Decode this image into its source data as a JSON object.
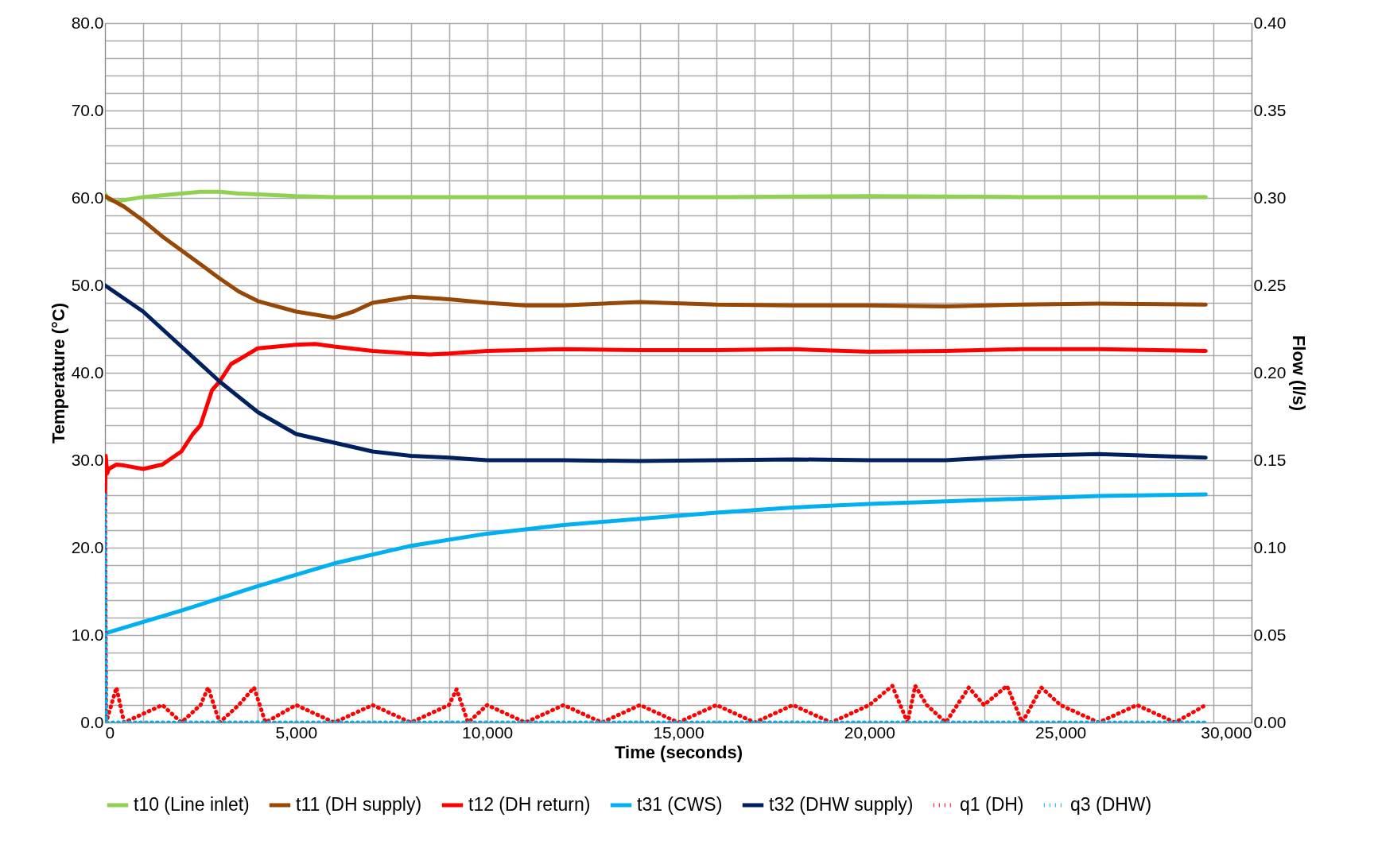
{
  "chart_data": {
    "type": "line",
    "xlabel": "Time (seconds)",
    "ylabel": "Temperature (°C)",
    "y2label": "Flow (l/s)",
    "xlim": [
      0,
      30000
    ],
    "ylim": [
      0,
      80
    ],
    "y2lim": [
      0,
      0.4
    ],
    "xticks": [
      0,
      {
        "value": 1000,
        "label": null
      },
      {
        "value": 2000,
        "label": null
      },
      {
        "value": 3000,
        "label": null
      },
      {
        "value": 4000,
        "label": null
      },
      {
        "value": 5000,
        "label": "5,000"
      },
      {
        "value": 6000,
        "label": null
      },
      {
        "value": 7000,
        "label": null
      },
      {
        "value": 8000,
        "label": null
      },
      {
        "value": 9000,
        "label": null
      },
      {
        "value": 10000,
        "label": "10,000"
      },
      {
        "value": 11000,
        "label": null
      },
      {
        "value": 12000,
        "label": null
      },
      {
        "value": 13000,
        "label": null
      },
      {
        "value": 14000,
        "label": null
      },
      {
        "value": 15000,
        "label": "15,000"
      },
      {
        "value": 16000,
        "label": null
      },
      {
        "value": 17000,
        "label": null
      },
      {
        "value": 18000,
        "label": null
      },
      {
        "value": 19000,
        "label": null
      },
      {
        "value": 20000,
        "label": "20,000"
      },
      {
        "value": 21000,
        "label": null
      },
      {
        "value": 22000,
        "label": null
      },
      {
        "value": 23000,
        "label": null
      },
      {
        "value": 24000,
        "label": null
      },
      {
        "value": 25000,
        "label": "25,000"
      },
      {
        "value": 26000,
        "label": null
      },
      {
        "value": 27000,
        "label": null
      },
      {
        "value": 28000,
        "label": null
      },
      {
        "value": 29000,
        "label": null
      },
      {
        "value": 30000,
        "label": "30,000"
      }
    ],
    "yticks": [
      {
        "value": 0,
        "label": "0.0"
      },
      {
        "value": 2,
        "label": null
      },
      {
        "value": 4,
        "label": null
      },
      {
        "value": 6,
        "label": null
      },
      {
        "value": 8,
        "label": null
      },
      {
        "value": 10,
        "label": "10.0"
      },
      {
        "value": 12,
        "label": null
      },
      {
        "value": 14,
        "label": null
      },
      {
        "value": 16,
        "label": null
      },
      {
        "value": 18,
        "label": null
      },
      {
        "value": 20,
        "label": "20.0"
      },
      {
        "value": 22,
        "label": null
      },
      {
        "value": 24,
        "label": null
      },
      {
        "value": 26,
        "label": null
      },
      {
        "value": 28,
        "label": null
      },
      {
        "value": 30,
        "label": "30.0"
      },
      {
        "value": 32,
        "label": null
      },
      {
        "value": 34,
        "label": null
      },
      {
        "value": 36,
        "label": null
      },
      {
        "value": 38,
        "label": null
      },
      {
        "value": 40,
        "label": "40.0"
      },
      {
        "value": 42,
        "label": null
      },
      {
        "value": 44,
        "label": null
      },
      {
        "value": 46,
        "label": null
      },
      {
        "value": 48,
        "label": null
      },
      {
        "value": 50,
        "label": "50.0"
      },
      {
        "value": 52,
        "label": null
      },
      {
        "value": 54,
        "label": null
      },
      {
        "value": 56,
        "label": null
      },
      {
        "value": 58,
        "label": null
      },
      {
        "value": 60,
        "label": "60.0"
      },
      {
        "value": 62,
        "label": null
      },
      {
        "value": 64,
        "label": null
      },
      {
        "value": 66,
        "label": null
      },
      {
        "value": 68,
        "label": null
      },
      {
        "value": 70,
        "label": "70.0"
      },
      {
        "value": 72,
        "label": null
      },
      {
        "value": 74,
        "label": null
      },
      {
        "value": 76,
        "label": null
      },
      {
        "value": 78,
        "label": null
      },
      {
        "value": 80,
        "label": "80.0"
      }
    ],
    "y2ticks": [
      {
        "value": 0,
        "label": "0.00"
      },
      0.05,
      {
        "value": 0.1,
        "label": "0.10"
      },
      0.15,
      {
        "value": 0.2,
        "label": "0.20"
      },
      0.25,
      {
        "value": 0.3,
        "label": "0.30"
      },
      0.35,
      {
        "value": 0.4,
        "label": "0.40"
      }
    ],
    "grid": true,
    "legend": "bottom",
    "marker": "none",
    "series": [
      {
        "name": "t10 (Line inlet)",
        "color": "#92d050",
        "line_style": "solid",
        "x": [
          0,
          100,
          300,
          1000,
          1500,
          2000,
          2500,
          3000,
          3500,
          4000,
          5000,
          6000,
          8000,
          12000,
          16000,
          20000,
          24000,
          28800
        ],
        "values": [
          60.5,
          59.8,
          59.6,
          60.1,
          60.3,
          60.5,
          60.7,
          60.7,
          60.5,
          60.4,
          60.2,
          60.1,
          60.1,
          60.1,
          60.1,
          60.2,
          60.1,
          60.1
        ]
      },
      {
        "name": "t11 (DH supply)",
        "color": "#974706",
        "line_style": "solid",
        "x": [
          0,
          500,
          1000,
          1500,
          2000,
          2500,
          3000,
          3500,
          4000,
          5000,
          6000,
          6500,
          7000,
          8000,
          9000,
          10000,
          11000,
          12000,
          14000,
          16000,
          18000,
          20000,
          22000,
          24000,
          26000,
          28800
        ],
        "values": [
          60.2,
          59,
          57.4,
          55.6,
          54,
          52.4,
          50.8,
          49.3,
          48.2,
          47,
          46.3,
          47,
          48,
          48.7,
          48.4,
          48,
          47.7,
          47.7,
          48.1,
          47.8,
          47.7,
          47.7,
          47.6,
          47.8,
          47.9,
          47.8
        ]
      },
      {
        "name": "t12 (DH return)",
        "color": "#ff0000",
        "line_style": "solid",
        "x": [
          0,
          20,
          60,
          100,
          300,
          500,
          1000,
          1500,
          2000,
          2300,
          2500,
          2800,
          3000,
          3300,
          3500,
          4000,
          5000,
          5500,
          6000,
          7000,
          8000,
          8500,
          9000,
          10000,
          12000,
          14000,
          16000,
          18000,
          20000,
          22000,
          24000,
          26000,
          28800
        ],
        "values": [
          25,
          30.5,
          28.5,
          29,
          29.5,
          29.4,
          29,
          29.5,
          31,
          33,
          34,
          38,
          39,
          41,
          41.5,
          42.8,
          43.2,
          43.3,
          43,
          42.5,
          42.2,
          42.1,
          42.2,
          42.5,
          42.7,
          42.6,
          42.6,
          42.7,
          42.4,
          42.5,
          42.7,
          42.7,
          42.5
        ]
      },
      {
        "name": "t31 (CWS)",
        "color": "#00b0f0",
        "line_style": "solid",
        "x": [
          0,
          2000,
          4000,
          6000,
          8000,
          10000,
          12000,
          14000,
          16000,
          18000,
          20000,
          22000,
          24000,
          26000,
          28800
        ],
        "values": [
          10.2,
          12.8,
          15.6,
          18.2,
          20.2,
          21.6,
          22.6,
          23.3,
          24,
          24.6,
          25,
          25.3,
          25.6,
          25.9,
          26.1
        ]
      },
      {
        "name": "t32 (DHW supply)",
        "color": "#002060",
        "line_style": "solid",
        "x": [
          0,
          1000,
          2000,
          3000,
          4000,
          5000,
          6000,
          7000,
          8000,
          9000,
          10000,
          12000,
          14000,
          16000,
          18000,
          20000,
          22000,
          24000,
          26000,
          28800
        ],
        "values": [
          50,
          47,
          43,
          39,
          35.5,
          33,
          32,
          31,
          30.5,
          30.3,
          30,
          30,
          29.9,
          30,
          30.1,
          30,
          30,
          30.5,
          30.7,
          30.3
        ]
      },
      {
        "name": "q1 (DH)",
        "color": "#ff0000",
        "line_style": "dotted",
        "axis": "y2",
        "x": [
          0,
          30,
          300,
          500,
          1000,
          1500,
          2000,
          2500,
          2700,
          3000,
          3500,
          3900,
          4200,
          5000,
          6000,
          7000,
          8000,
          9000,
          9200,
          9500,
          10000,
          11000,
          12000,
          13000,
          14000,
          15000,
          16000,
          17000,
          18000,
          19000,
          20000,
          20600,
          21000,
          21200,
          21500,
          22000,
          22600,
          23000,
          23600,
          24000,
          24500,
          25000,
          26000,
          27000,
          28000,
          28800
        ],
        "values": [
          0.15,
          0,
          0.02,
          0,
          0.005,
          0.01,
          0,
          0.01,
          0.02,
          0,
          0.01,
          0.02,
          0,
          0.01,
          0,
          0.01,
          0,
          0.01,
          0.019,
          0,
          0.01,
          0,
          0.01,
          0,
          0.01,
          0,
          0.01,
          0,
          0.01,
          0,
          0.01,
          0.021,
          0,
          0.021,
          0.01,
          0,
          0.02,
          0.01,
          0.021,
          0,
          0.02,
          0.01,
          0,
          0.01,
          0,
          0.01
        ]
      },
      {
        "name": "q3 (DHW)",
        "color": "#00b0f0",
        "line_style": "dotted",
        "axis": "y2",
        "x": [
          0,
          30,
          28800
        ],
        "values": [
          0.13,
          0,
          0
        ]
      }
    ]
  }
}
